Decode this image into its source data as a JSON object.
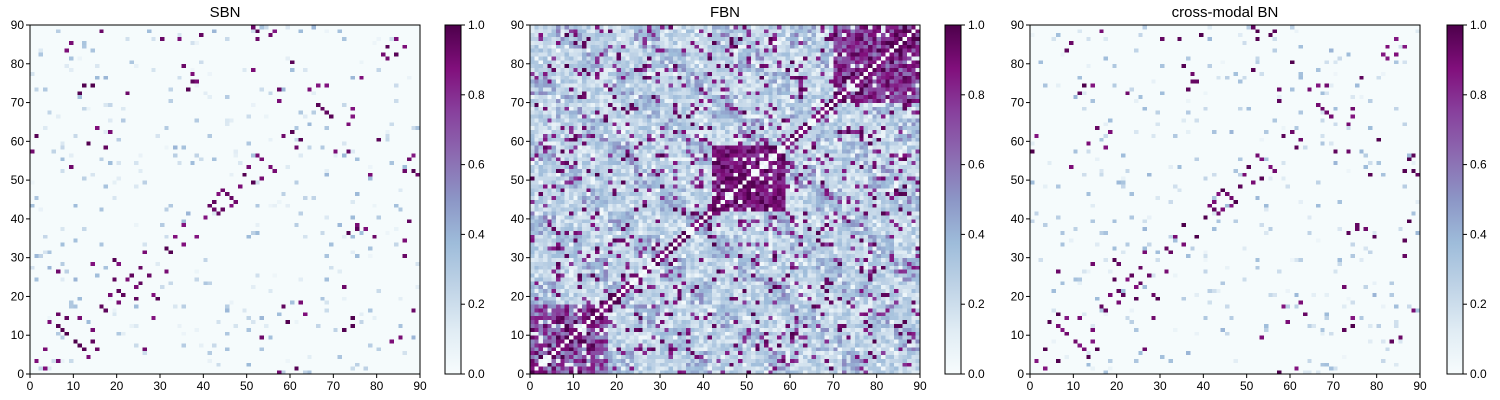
{
  "figure": {
    "colormap": {
      "name": "BuPu",
      "stops": [
        "#f7fcfd",
        "#e0ecf4",
        "#bfd3e6",
        "#9ebcda",
        "#8c96c6",
        "#8c6bb1",
        "#88419d",
        "#810f7c",
        "#4d004b"
      ]
    }
  },
  "chart_data": [
    {
      "type": "heatmap",
      "title": "SBN",
      "size": 90,
      "xlim": [
        0,
        90
      ],
      "ylim": [
        0,
        90
      ],
      "xticks": [
        "0",
        "10",
        "20",
        "30",
        "40",
        "50",
        "60",
        "70",
        "80",
        "90"
      ],
      "yticks": [
        "0",
        "10",
        "20",
        "30",
        "40",
        "50",
        "60",
        "70",
        "80",
        "90"
      ],
      "colorbar": {
        "range": [
          0.0,
          1.0
        ],
        "ticks": [
          "0.0",
          "0.2",
          "0.4",
          "0.6",
          "0.8",
          "1.0"
        ]
      },
      "strong_cells": [
        [
          0,
          57
        ],
        [
          1,
          3
        ],
        [
          1,
          61
        ],
        [
          3,
          6
        ],
        [
          4,
          13
        ],
        [
          6,
          15
        ],
        [
          7,
          11
        ],
        [
          9,
          53
        ],
        [
          10,
          8
        ],
        [
          11,
          14
        ],
        [
          12,
          74
        ],
        [
          12,
          6
        ],
        [
          14,
          8
        ],
        [
          14,
          74
        ],
        [
          15,
          63
        ],
        [
          16,
          88
        ],
        [
          17,
          16
        ],
        [
          18,
          20
        ],
        [
          19,
          29
        ],
        [
          20,
          21
        ],
        [
          22,
          72
        ],
        [
          22,
          24
        ],
        [
          23,
          25
        ],
        [
          24,
          19
        ],
        [
          25,
          27
        ],
        [
          26,
          6
        ],
        [
          26,
          31
        ],
        [
          28,
          14
        ],
        [
          28,
          20
        ],
        [
          30,
          86
        ],
        [
          32,
          31
        ],
        [
          33,
          35
        ],
        [
          34,
          86
        ],
        [
          35,
          38
        ],
        [
          36,
          73
        ],
        [
          37,
          75
        ],
        [
          38,
          75
        ],
        [
          39,
          87
        ],
        [
          40,
          40
        ],
        [
          41,
          43
        ],
        [
          42,
          42
        ],
        [
          42,
          44
        ],
        [
          43,
          46
        ],
        [
          44,
          47
        ],
        [
          46,
          45
        ],
        [
          48,
          48
        ],
        [
          49,
          51
        ],
        [
          50,
          53
        ],
        [
          51,
          49
        ],
        [
          52,
          56
        ],
        [
          53,
          55
        ],
        [
          56,
          88
        ],
        [
          57,
          90
        ],
        [
          58,
          17
        ],
        [
          59,
          13
        ],
        [
          60,
          62
        ],
        [
          61,
          58
        ],
        [
          62,
          18
        ],
        [
          64,
          73
        ],
        [
          66,
          69
        ],
        [
          67,
          68
        ],
        [
          68,
          74
        ],
        [
          70,
          57
        ],
        [
          72,
          11
        ],
        [
          73,
          57
        ],
        [
          74,
          66
        ],
        [
          76,
          76
        ],
        [
          77,
          37
        ],
        [
          78,
          51
        ],
        [
          79,
          35
        ],
        [
          80,
          60
        ],
        [
          81,
          82
        ],
        [
          82,
          84
        ],
        [
          83,
          8
        ],
        [
          84,
          86
        ],
        [
          85,
          9
        ],
        [
          86,
          52
        ],
        [
          87,
          55
        ],
        [
          88,
          52
        ],
        [
          89,
          51
        ]
      ]
    },
    {
      "type": "heatmap",
      "title": "FBN",
      "size": 90,
      "xlim": [
        0,
        90
      ],
      "ylim": [
        0,
        90
      ],
      "xticks": [
        "0",
        "10",
        "20",
        "30",
        "40",
        "50",
        "60",
        "70",
        "80",
        "90"
      ],
      "yticks": [
        "0",
        "10",
        "20",
        "30",
        "40",
        "50",
        "60",
        "70",
        "80",
        "90"
      ],
      "colorbar": {
        "range": [
          0.0,
          1.0
        ],
        "ticks": [
          "0.0",
          "0.2",
          "0.4",
          "0.6",
          "0.8",
          "1.0"
        ]
      },
      "strong_cells": [
        [
          42,
          42
        ],
        [
          43,
          45
        ],
        [
          44,
          47
        ],
        [
          45,
          50
        ],
        [
          46,
          52
        ],
        [
          47,
          44
        ],
        [
          48,
          49
        ],
        [
          50,
          46
        ],
        [
          52,
          54
        ],
        [
          54,
          43
        ],
        [
          56,
          58
        ],
        [
          58,
          55
        ],
        [
          70,
          72
        ],
        [
          72,
          75
        ],
        [
          74,
          77
        ],
        [
          76,
          73
        ],
        [
          78,
          81
        ],
        [
          80,
          83
        ],
        [
          82,
          85
        ],
        [
          84,
          87
        ],
        [
          86,
          89
        ],
        [
          88,
          86
        ],
        [
          0,
          0
        ],
        [
          2,
          4
        ],
        [
          4,
          7
        ],
        [
          6,
          9
        ],
        [
          8,
          11
        ],
        [
          10,
          13
        ],
        [
          12,
          8
        ],
        [
          14,
          16
        ],
        [
          16,
          18
        ],
        [
          18,
          20
        ]
      ]
    },
    {
      "type": "heatmap",
      "title": "cross-modal BN",
      "size": 90,
      "xlim": [
        0,
        90
      ],
      "ylim": [
        0,
        90
      ],
      "xticks": [
        "0",
        "10",
        "20",
        "30",
        "40",
        "50",
        "60",
        "70",
        "80",
        "90"
      ],
      "yticks": [
        "0",
        "10",
        "20",
        "30",
        "40",
        "50",
        "60",
        "70",
        "80",
        "90"
      ],
      "colorbar": {
        "range": [
          0.0,
          1.0
        ],
        "ticks": [
          "0.0",
          "0.2",
          "0.4",
          "0.6",
          "0.8",
          "1.0"
        ]
      },
      "strong_cells": [
        [
          0,
          57
        ],
        [
          1,
          3
        ],
        [
          1,
          61
        ],
        [
          3,
          6
        ],
        [
          4,
          13
        ],
        [
          6,
          15
        ],
        [
          7,
          11
        ],
        [
          9,
          53
        ],
        [
          10,
          8
        ],
        [
          11,
          14
        ],
        [
          12,
          74
        ],
        [
          12,
          6
        ],
        [
          14,
          8
        ],
        [
          14,
          74
        ],
        [
          15,
          63
        ],
        [
          16,
          88
        ],
        [
          17,
          16
        ],
        [
          18,
          20
        ],
        [
          19,
          29
        ],
        [
          20,
          21
        ],
        [
          22,
          72
        ],
        [
          22,
          24
        ],
        [
          23,
          25
        ],
        [
          24,
          19
        ],
        [
          25,
          27
        ],
        [
          26,
          6
        ],
        [
          26,
          31
        ],
        [
          28,
          14
        ],
        [
          28,
          20
        ],
        [
          30,
          86
        ],
        [
          32,
          31
        ],
        [
          33,
          35
        ],
        [
          34,
          86
        ],
        [
          35,
          38
        ],
        [
          36,
          73
        ],
        [
          37,
          75
        ],
        [
          38,
          75
        ],
        [
          39,
          87
        ],
        [
          40,
          40
        ],
        [
          41,
          43
        ],
        [
          42,
          42
        ],
        [
          42,
          44
        ],
        [
          43,
          46
        ],
        [
          44,
          47
        ],
        [
          46,
          45
        ],
        [
          48,
          48
        ],
        [
          49,
          51
        ],
        [
          50,
          53
        ],
        [
          51,
          49
        ],
        [
          52,
          56
        ],
        [
          53,
          55
        ],
        [
          56,
          88
        ],
        [
          57,
          90
        ],
        [
          58,
          17
        ],
        [
          59,
          13
        ],
        [
          60,
          62
        ],
        [
          61,
          58
        ],
        [
          62,
          18
        ],
        [
          64,
          73
        ],
        [
          66,
          69
        ],
        [
          67,
          68
        ],
        [
          68,
          74
        ],
        [
          70,
          57
        ],
        [
          72,
          11
        ],
        [
          73,
          57
        ],
        [
          74,
          66
        ],
        [
          76,
          76
        ],
        [
          77,
          37
        ],
        [
          78,
          51
        ],
        [
          79,
          35
        ],
        [
          80,
          60
        ],
        [
          81,
          82
        ],
        [
          82,
          84
        ],
        [
          83,
          8
        ],
        [
          84,
          86
        ],
        [
          85,
          9
        ],
        [
          86,
          52
        ],
        [
          87,
          55
        ],
        [
          88,
          52
        ],
        [
          89,
          51
        ]
      ]
    }
  ]
}
